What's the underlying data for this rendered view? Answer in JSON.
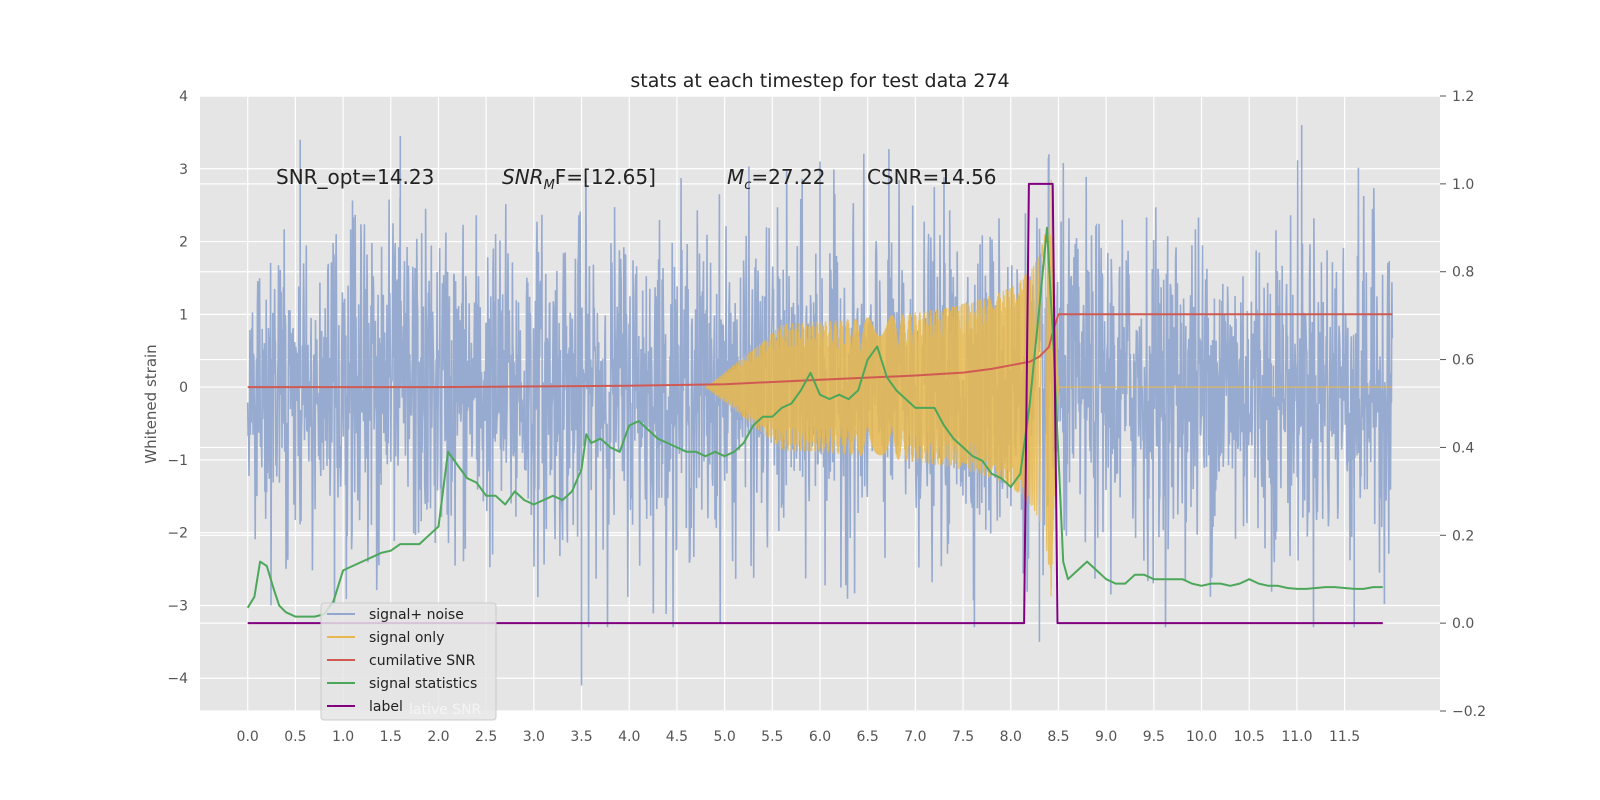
{
  "chart_data": {
    "type": "line",
    "title": "stats at each timestep for test data 274",
    "ylabel": "Whitened strain",
    "ylabel_right": "",
    "xlim": [
      -0.5,
      12.5
    ],
    "ylim": [
      -4.45,
      4.0
    ],
    "ylim_right": [
      -0.2,
      1.2
    ],
    "x_ticks": [
      "0.0",
      "0.5",
      "1.0",
      "1.5",
      "2.0",
      "2.5",
      "3.0",
      "3.5",
      "4.0",
      "4.5",
      "5.0",
      "5.5",
      "6.0",
      "6.5",
      "7.0",
      "7.5",
      "8.0",
      "8.5",
      "9.0",
      "9.5",
      "10.0",
      "10.5",
      "11.0",
      "11.5"
    ],
    "y_ticks": [
      "4",
      "3",
      "2",
      "1",
      "0",
      "−1",
      "−2",
      "−3",
      "−4"
    ],
    "y_ticks_right": [
      "1.2",
      "1.0",
      "0.8",
      "0.6",
      "0.4",
      "0.2",
      "0.0",
      "−0.2"
    ],
    "grid": true,
    "legend_position": "lower-left",
    "annotations": [
      {
        "kind": "plain",
        "text": "SNR_opt=14.23"
      },
      {
        "kind": "sub",
        "main": "SNR",
        "sub": "M",
        "rest": "F=[12.65]"
      },
      {
        "kind": "sub",
        "main": "M",
        "sub": "c",
        "rest": "=27.22"
      },
      {
        "kind": "plain",
        "text": "CSNR=14.56"
      }
    ],
    "legend_ghost": "lative SNR",
    "series": [
      {
        "name": "signal+ noise",
        "color": "#92a6cf",
        "axis": "left",
        "noise_profile": {
          "x_range": [
            0.0,
            12.0
          ],
          "typical_envelope": [
            -1.9,
            1.9
          ],
          "observed_extremes": [
            {
              "x": 0.55,
              "y": 3.4
            },
            {
              "x": 1.6,
              "y": 3.45
            },
            {
              "x": 6.0,
              "y": 3.1
            },
            {
              "x": 8.4,
              "y": 3.2
            },
            {
              "x": 11.05,
              "y": 3.6
            },
            {
              "x": 3.5,
              "y": -4.1
            },
            {
              "x": 8.3,
              "y": -3.5
            },
            {
              "x": 11.6,
              "y": -3.3
            }
          ]
        }
      },
      {
        "name": "signal only",
        "color": "#e8b84d",
        "axis": "left",
        "chirp": {
          "start": 4.8,
          "peak": 8.42,
          "end": 8.5,
          "peak_amplitude": 3.0
        }
      },
      {
        "name": "cumilative SNR",
        "color": "#d05a52",
        "axis": "left",
        "x": [
          0.0,
          2.0,
          4.0,
          5.0,
          6.0,
          7.0,
          7.5,
          7.8,
          8.0,
          8.2,
          8.3,
          8.4,
          8.45,
          8.5,
          9.0,
          10.0,
          11.0,
          12.0
        ],
        "y": [
          0.0,
          0.0,
          0.02,
          0.04,
          0.1,
          0.16,
          0.2,
          0.25,
          0.3,
          0.35,
          0.42,
          0.55,
          0.8,
          1.0,
          1.0,
          1.0,
          1.0,
          1.0
        ]
      },
      {
        "name": "signal statistics",
        "color": "#4da75a",
        "axis": "right",
        "x": [
          0.0,
          0.07,
          0.13,
          0.2,
          0.27,
          0.33,
          0.4,
          0.5,
          0.6,
          0.7,
          0.8,
          0.9,
          1.0,
          1.1,
          1.2,
          1.3,
          1.4,
          1.5,
          1.6,
          1.7,
          1.8,
          1.9,
          2.0,
          2.1,
          2.2,
          2.3,
          2.4,
          2.5,
          2.6,
          2.7,
          2.8,
          2.9,
          3.0,
          3.1,
          3.2,
          3.3,
          3.4,
          3.5,
          3.55,
          3.6,
          3.7,
          3.8,
          3.9,
          4.0,
          4.1,
          4.2,
          4.3,
          4.4,
          4.5,
          4.6,
          4.7,
          4.8,
          4.9,
          5.0,
          5.1,
          5.2,
          5.3,
          5.4,
          5.5,
          5.6,
          5.7,
          5.8,
          5.9,
          6.0,
          6.1,
          6.2,
          6.3,
          6.4,
          6.5,
          6.6,
          6.7,
          6.8,
          6.9,
          7.0,
          7.1,
          7.2,
          7.3,
          7.4,
          7.5,
          7.6,
          7.7,
          7.8,
          7.9,
          8.0,
          8.1,
          8.2,
          8.3,
          8.38,
          8.45,
          8.55,
          8.6,
          8.7,
          8.8,
          8.9,
          9.0,
          9.1,
          9.2,
          9.3,
          9.4,
          9.5,
          9.6,
          9.7,
          9.8,
          9.9,
          10.0,
          10.1,
          10.2,
          10.3,
          10.4,
          10.5,
          10.6,
          10.7,
          10.8,
          10.9,
          11.0,
          11.1,
          11.2,
          11.3,
          11.4,
          11.5,
          11.6,
          11.7,
          11.8,
          11.9
        ],
        "y": [
          0.035,
          0.06,
          0.14,
          0.13,
          0.08,
          0.04,
          0.025,
          0.015,
          0.015,
          0.015,
          0.02,
          0.05,
          0.12,
          0.13,
          0.14,
          0.15,
          0.16,
          0.165,
          0.18,
          0.18,
          0.18,
          0.2,
          0.22,
          0.39,
          0.36,
          0.33,
          0.32,
          0.29,
          0.29,
          0.27,
          0.3,
          0.28,
          0.27,
          0.28,
          0.29,
          0.28,
          0.3,
          0.35,
          0.43,
          0.41,
          0.42,
          0.4,
          0.39,
          0.45,
          0.46,
          0.44,
          0.42,
          0.41,
          0.4,
          0.39,
          0.39,
          0.38,
          0.39,
          0.38,
          0.39,
          0.41,
          0.45,
          0.47,
          0.47,
          0.49,
          0.5,
          0.53,
          0.57,
          0.52,
          0.51,
          0.52,
          0.51,
          0.53,
          0.6,
          0.63,
          0.56,
          0.53,
          0.51,
          0.49,
          0.49,
          0.49,
          0.45,
          0.42,
          0.4,
          0.38,
          0.37,
          0.34,
          0.33,
          0.31,
          0.34,
          0.5,
          0.72,
          0.9,
          0.62,
          0.14,
          0.1,
          0.12,
          0.14,
          0.12,
          0.1,
          0.09,
          0.09,
          0.11,
          0.11,
          0.1,
          0.1,
          0.1,
          0.1,
          0.09,
          0.085,
          0.09,
          0.09,
          0.085,
          0.09,
          0.1,
          0.09,
          0.085,
          0.085,
          0.08,
          0.078,
          0.078,
          0.08,
          0.082,
          0.082,
          0.08,
          0.078,
          0.078,
          0.082,
          0.082
        ]
      },
      {
        "name": "label",
        "color": "#800080",
        "axis": "right",
        "x": [
          0.0,
          8.14,
          8.19,
          8.44,
          8.49,
          11.9
        ],
        "y": [
          0.0,
          0.0,
          1.0,
          1.0,
          0.0,
          0.0
        ]
      }
    ]
  }
}
